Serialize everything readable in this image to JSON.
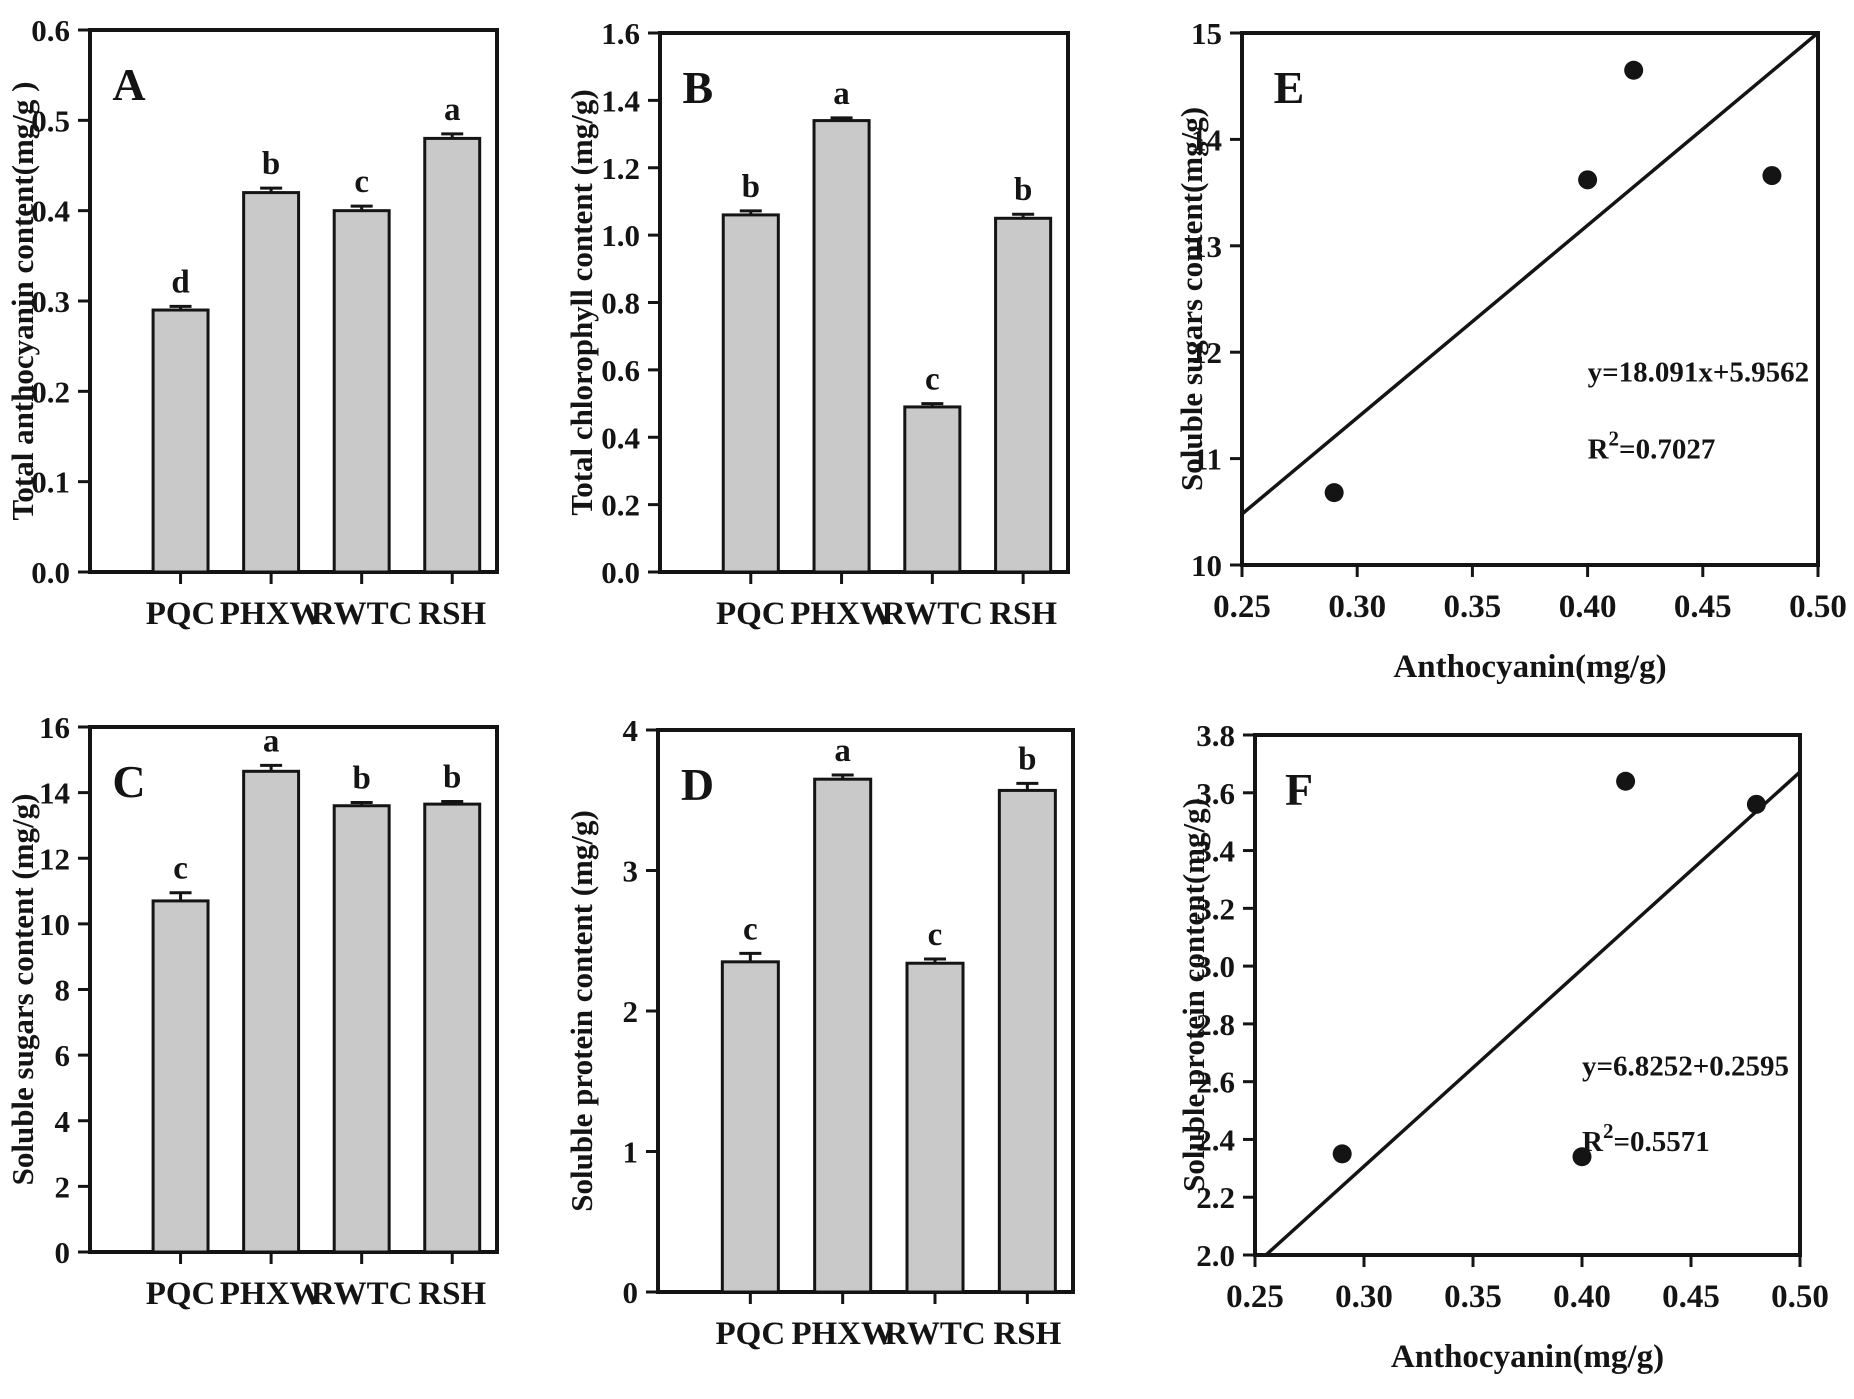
{
  "figure": {
    "background": "#ffffff",
    "bar_fill": "#c9c9c9",
    "ink": "#141414"
  },
  "chart_data": [
    {
      "panel": "A",
      "type": "bar",
      "ylabel": "Total anthocyanin content(mg/g )",
      "categories": [
        "PQC",
        "PHXW",
        "RWTC",
        "RSH"
      ],
      "values": [
        0.29,
        0.42,
        0.4,
        0.48
      ],
      "errors": [
        0.004,
        0.005,
        0.005,
        0.005
      ],
      "sig_letters": [
        "d",
        "b",
        "c",
        "a"
      ],
      "ylim": [
        0,
        0.6
      ],
      "ytick_step": 0.1,
      "ytick_decimals": 1
    },
    {
      "panel": "B",
      "type": "bar",
      "ylabel": "Total chlorophyll content (mg/g)",
      "categories": [
        "PQC",
        "PHXW",
        "RWTC",
        "RSH"
      ],
      "values": [
        1.06,
        1.34,
        0.49,
        1.05
      ],
      "errors": [
        0.012,
        0.008,
        0.01,
        0.012
      ],
      "sig_letters": [
        "b",
        "a",
        "c",
        "b"
      ],
      "ylim": [
        0,
        1.6
      ],
      "ytick_step": 0.2,
      "ytick_decimals": 1
    },
    {
      "panel": "C",
      "type": "bar",
      "ylabel": "Soluble sugars content (mg/g)",
      "categories": [
        "PQC",
        "PHXW",
        "RWTC",
        "RSH"
      ],
      "values": [
        10.7,
        14.65,
        13.6,
        13.65
      ],
      "errors": [
        0.25,
        0.18,
        0.1,
        0.08
      ],
      "sig_letters": [
        "c",
        "a",
        "b",
        "b"
      ],
      "ylim": [
        0,
        16
      ],
      "ytick_step": 2,
      "ytick_decimals": 0
    },
    {
      "panel": "D",
      "type": "bar",
      "ylabel": "Soluble protein content (mg/g)",
      "categories": [
        "PQC",
        "PHXW",
        "RWTC",
        "RSH"
      ],
      "values": [
        2.35,
        3.65,
        2.34,
        3.57
      ],
      "errors": [
        0.06,
        0.03,
        0.03,
        0.05
      ],
      "sig_letters": [
        "c",
        "a",
        "c",
        "b"
      ],
      "ylim": [
        0,
        4
      ],
      "ytick_step": 1,
      "ytick_decimals": 0
    },
    {
      "panel": "E",
      "type": "scatter",
      "ylabel": "Soluble sugars content(mg/g)",
      "xlabel": "Anthocyanin(mg/g)",
      "points_x": [
        0.29,
        0.4,
        0.42,
        0.48
      ],
      "points_y": [
        10.68,
        13.62,
        14.65,
        13.66
      ],
      "xlim": [
        0.25,
        0.5
      ],
      "xtick_step": 0.05,
      "xtick_decimals": 2,
      "ylim": [
        10,
        15
      ],
      "ytick_step": 1,
      "ytick_decimals": 0,
      "regression": {
        "slope": 18.091,
        "intercept": 5.9562
      },
      "equation": "y=18.091x+5.9562",
      "r2_base": "R",
      "r2_sup": "2",
      "r2_rest": "=0.7027"
    },
    {
      "panel": "F",
      "type": "scatter",
      "ylabel": "Soluble protein content(mg/g)",
      "xlabel": "Anthocyanin(mg/g)",
      "points_x": [
        0.29,
        0.4,
        0.42,
        0.48
      ],
      "points_y": [
        2.35,
        2.34,
        3.64,
        3.56
      ],
      "xlim": [
        0.25,
        0.5
      ],
      "xtick_step": 0.05,
      "xtick_decimals": 2,
      "ylim": [
        2.0,
        3.8
      ],
      "ytick_step": 0.2,
      "ytick_decimals": 1,
      "regression": {
        "slope": 6.8252,
        "intercept": 0.2595
      },
      "equation": "y=6.8252+0.2595",
      "r2_base": "R",
      "r2_sup": "2",
      "r2_rest": "=0.5571"
    }
  ]
}
